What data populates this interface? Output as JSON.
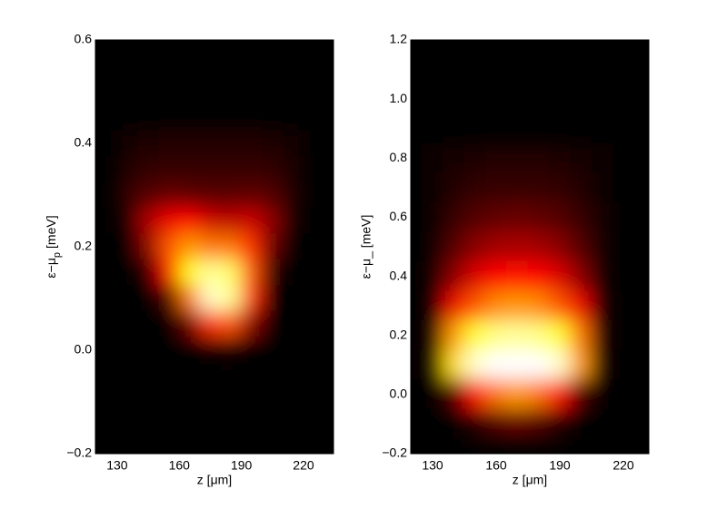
{
  "chart_data": [
    {
      "type": "heatmap",
      "colormap": "hot",
      "xlabel": "z [μm]",
      "ylabel": [
        "ε−μ",
        "p",
        "[meV]"
      ],
      "xlim": [
        119.5,
        234.5
      ],
      "ylim": [
        -0.2,
        0.6
      ],
      "xticks": [
        130,
        160,
        190,
        220
      ],
      "yticks": [
        {
          "value": -0.2,
          "label": "−0.2"
        },
        {
          "value": 0,
          "label": "0.0"
        },
        0.2,
        0.4,
        0.6
      ],
      "x": [
        135,
        145,
        155,
        165,
        175,
        185,
        195,
        205,
        215
      ],
      "y": [
        0.45,
        0.4,
        0.35,
        0.3,
        0.25,
        0.2,
        0.15,
        0.1,
        0.05,
        0
      ],
      "z": [
        [
          0,
          0,
          0,
          0,
          0,
          0,
          0,
          0,
          0
        ],
        [
          0.03,
          0.04,
          0.05,
          0.05,
          0.05,
          0.05,
          0.05,
          0.04,
          0.03
        ],
        [
          0.05,
          0.07,
          0.08,
          0.08,
          0.08,
          0.08,
          0.08,
          0.07,
          0.04
        ],
        [
          0.08,
          0.12,
          0.15,
          0.14,
          0.13,
          0.13,
          0.14,
          0.12,
          0.05
        ],
        [
          0.05,
          0.25,
          0.35,
          0.38,
          0.3,
          0.28,
          0.3,
          0.2,
          0.03
        ],
        [
          0,
          0.2,
          0.5,
          0.6,
          0.55,
          0.55,
          0.45,
          0.15,
          0
        ],
        [
          0,
          0.05,
          0.4,
          0.75,
          0.9,
          0.85,
          0.5,
          0.05,
          0
        ],
        [
          0,
          0,
          0.1,
          0.55,
          0.95,
          0.9,
          0.45,
          0,
          0
        ],
        [
          0,
          0,
          0,
          0.15,
          0.45,
          0.5,
          0.2,
          0,
          0
        ],
        [
          0,
          0,
          0,
          0,
          0.02,
          0.03,
          0,
          0,
          0
        ]
      ]
    },
    {
      "type": "heatmap",
      "colormap": "hot",
      "xlabel": "z [μm]",
      "ylabel": "ε−μ_ [meV]",
      "xlim": [
        119.7,
        232
      ],
      "ylim": [
        -0.2,
        1.2
      ],
      "xticks": [
        130,
        160,
        190,
        220
      ],
      "yticks": [
        {
          "value": -0.2,
          "label": "−0.2"
        },
        {
          "value": 0,
          "label": "0.0"
        },
        0.2,
        0.4,
        0.6,
        0.8,
        {
          "value": 1,
          "label": "1.0"
        },
        1.2
      ],
      "x": [
        130,
        140,
        150,
        160,
        170,
        180,
        190,
        200,
        210
      ],
      "y": [
        0.8,
        0.7,
        0.6,
        0.5,
        0.4,
        0.3,
        0.2,
        0.1,
        0,
        -0.1
      ],
      "z": [
        [
          0.02,
          0.03,
          0.04,
          0.05,
          0.05,
          0.05,
          0.04,
          0.03,
          0.02
        ],
        [
          0.02,
          0.05,
          0.07,
          0.08,
          0.08,
          0.08,
          0.07,
          0.05,
          0.02
        ],
        [
          0.02,
          0.08,
          0.12,
          0.14,
          0.15,
          0.14,
          0.12,
          0.08,
          0.03
        ],
        [
          0.02,
          0.12,
          0.2,
          0.24,
          0.25,
          0.24,
          0.2,
          0.12,
          0.03
        ],
        [
          0.03,
          0.2,
          0.32,
          0.38,
          0.4,
          0.38,
          0.32,
          0.2,
          0.03
        ],
        [
          0.03,
          0.35,
          0.5,
          0.58,
          0.6,
          0.58,
          0.5,
          0.35,
          0.04
        ],
        [
          0.04,
          0.6,
          0.8,
          0.88,
          0.9,
          0.88,
          0.8,
          0.55,
          0.04
        ],
        [
          0.04,
          0.7,
          0.95,
          1,
          1,
          1,
          0.95,
          0.6,
          0.03
        ],
        [
          0,
          0.1,
          0.4,
          0.55,
          0.6,
          0.55,
          0.4,
          0.1,
          0
        ],
        [
          0,
          0,
          0.05,
          0.12,
          0.15,
          0.12,
          0.05,
          0,
          0
        ]
      ]
    }
  ]
}
